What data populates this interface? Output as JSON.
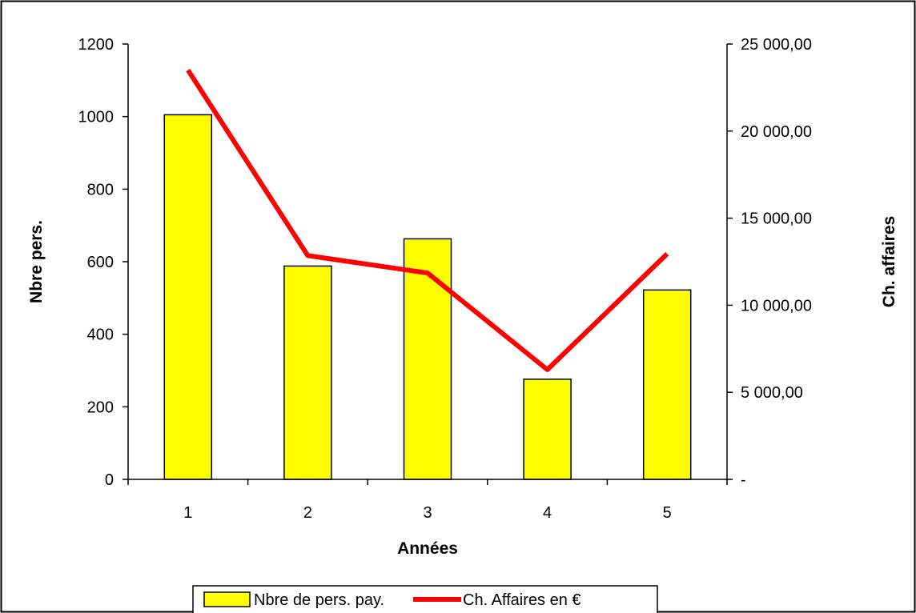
{
  "chart_data": {
    "type": "bar+line",
    "categories": [
      "1",
      "2",
      "3",
      "4",
      "5"
    ],
    "xlabel": "Années",
    "ylabel_left": "Nbre pers.",
    "ylabel_right": "Ch. affaires",
    "ylim_left": [
      0,
      1200
    ],
    "ylim_right": [
      0,
      25000
    ],
    "yticks_left": [
      "0",
      "200",
      "400",
      "600",
      "800",
      "1000",
      "1200"
    ],
    "yticks_right": [
      "-",
      "5 000,00",
      "10 000,00",
      "15 000,00",
      "20 000,00",
      "25 000,00"
    ],
    "grid": false,
    "legend_position": "bottom",
    "series": [
      {
        "name": "Nbre de pers. pay.",
        "type": "bar",
        "axis": "left",
        "color": "#ffff00",
        "values": [
          1005,
          588,
          663,
          276,
          522
        ]
      },
      {
        "name": "Ch. Affaires en €",
        "type": "line",
        "axis": "right",
        "color": "#ff0000",
        "values": [
          23500,
          12850,
          11850,
          6300,
          12950
        ]
      }
    ]
  }
}
